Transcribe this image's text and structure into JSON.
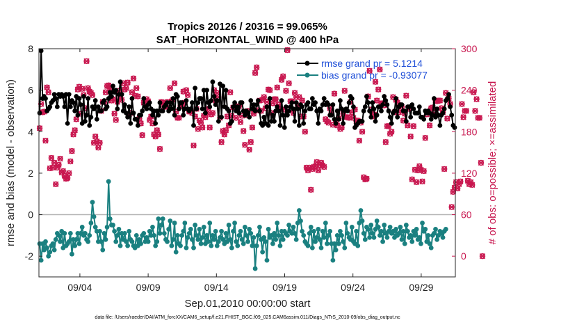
{
  "chart_data": {
    "type": "line",
    "title": "Tropics 20126 / 20316 = 99.065%",
    "subtitle": "SAT_HORIZONTAL_WIND @ 400 hPa",
    "xlabel": "Sep.01,2010 00:00:00 start",
    "ylabel": "rmse and bias (model - observation)",
    "y2label": "# of obs: o=possible; ×=assimilated",
    "footnote": "data file: /Users/raeder/DAI/ATM_forcXX/CAM6_setup/f.e21.FHIST_BGC.f09_025.CAM6assim.011/Diags_NTrS_2010-09/obs_diag_output.nc",
    "xlim": [
      1,
      31.5
    ],
    "ylim": [
      -3,
      8
    ],
    "y2lim": [
      -30,
      300
    ],
    "xticks": [
      4,
      9,
      14,
      19,
      24,
      29
    ],
    "xtick_labels": [
      "09/04",
      "09/09",
      "09/14",
      "09/19",
      "09/24",
      "09/29"
    ],
    "yticks": [
      -2,
      0,
      2,
      4,
      6,
      8
    ],
    "y2ticks": [
      0,
      60,
      120,
      180,
      240,
      300
    ],
    "legend": {
      "placement": "top-right",
      "entries": [
        "rmse grand pr = 5.1214",
        "bias grand pr = -0.93077"
      ]
    },
    "colors": {
      "rmse": "#000000",
      "bias": "#1a8080",
      "counts": "#c8174f",
      "zero_line": "#b4b4b4",
      "legend_text": "#1f4fd8"
    },
    "series": [
      {
        "name": "rmse",
        "axis": "left",
        "values": [
          4.9,
          7.9,
          5.6,
          5.7,
          5.6,
          5.0,
          5.1,
          5.2,
          5.4,
          5.5,
          5.8,
          5.6,
          5.2,
          5.8,
          5.7,
          5.8,
          5.7,
          5.2,
          5.8,
          4.4,
          5.8,
          5.2,
          5.5,
          5.4,
          5.0,
          5.7,
          4.8,
          5.6,
          5.3,
          4.4,
          5.7,
          4.5,
          4.8,
          5.6,
          4.3,
          4.7,
          5.2,
          5.1,
          5.5,
          4.6,
          5.2,
          5.0,
          5.0,
          5.4,
          5.5,
          5.1,
          5.2,
          5.6,
          5.9,
          5.7,
          6.2,
          5.9,
          6.0,
          5.1,
          5.8,
          6.4,
          5.8,
          5.0,
          5.3,
          4.9,
          4.7,
          5.2,
          4.4,
          5.6,
          4.9,
          4.6,
          4.6,
          4.3,
          4.8,
          4.8,
          5.0,
          5.6,
          5.2,
          5.1,
          5.3,
          5.4,
          5.1,
          4.8,
          5.0,
          4.4,
          5.0,
          4.8,
          5.4,
          5.0,
          5.0,
          5.2,
          5.3,
          5.4,
          5.0,
          5.4,
          5.1,
          5.6,
          4.8,
          5.8,
          5.7,
          5.1,
          5.4,
          5.4,
          4.8,
          5.1,
          5.5,
          5.1,
          5.0,
          5.1,
          5.4,
          4.3,
          6.1,
          5.1,
          5.4,
          5.6,
          5.6,
          5.1,
          6.0,
          4.9,
          6.0,
          5.4,
          5.2,
          5.5,
          6.4,
          5.7,
          5.3,
          5.5,
          4.5,
          6.3,
          4.7,
          6.2,
          5.2,
          6.0,
          5.1,
          5.0,
          4.4,
          4.5,
          5.2,
          5.4,
          5.0,
          5.2,
          4.9,
          5.4,
          5.4,
          5.0,
          4.8,
          5.0,
          4.9,
          4.7,
          5.5,
          5.1,
          5.3,
          5.0,
          5.3,
          5.5,
          5.0,
          4.4,
          4.3,
          4.7,
          4.4,
          5.2,
          4.3,
          5.6,
          4.5,
          4.8,
          4.5,
          5.0,
          5.2,
          5.0,
          4.3,
          5.5,
          4.8,
          4.2,
          5.2,
          4.8,
          5.0,
          5.2,
          5.4,
          5.1,
          4.5,
          5.4,
          5.1,
          4.3,
          5.3,
          5.2,
          4.4,
          5.0,
          5.3,
          5.4,
          5.1,
          5.1,
          5.6,
          5.3,
          5.4,
          5.0,
          4.4,
          5.1,
          5.0,
          5.3,
          5.6,
          5.3,
          5.4,
          5.3,
          4.8,
          4.8,
          5.3,
          4.6,
          4.4,
          5.0,
          4.6,
          5.5,
          5.1,
          4.4,
          5.0,
          5.1,
          5.0,
          5.4,
          5.7,
          5.6,
          5.2,
          4.2,
          4.3,
          4.4,
          4.5,
          4.5,
          4.5,
          5.0,
          5.2,
          5.7,
          5.4,
          5.0,
          4.7,
          5.4,
          5.1,
          4.5,
          4.8,
          5.2,
          5.2,
          5.0,
          5.3,
          5.7,
          5.5,
          5.3,
          5.0,
          4.7,
          4.4,
          4.9,
          5.0,
          5.6,
          4.7,
          5.2,
          5.3,
          5.3,
          5.0,
          5.0,
          4.5,
          5.2,
          5.2,
          4.7,
          5.3,
          5.1,
          4.9,
          4.9,
          4.9,
          5.2,
          4.7,
          4.7,
          4.6,
          5.0,
          4.9,
          5.0,
          4.9,
          4.6,
          4.8,
          5.6,
          4.7,
          5.1,
          4.8,
          4.3,
          4.8,
          4.9,
          5.1,
          5.5,
          5.6,
          5.8,
          5.2,
          4.8,
          4.3,
          4.2
        ]
      },
      {
        "name": "bias",
        "axis": "left",
        "values": [
          -1.4,
          -2.2,
          -1.4,
          -1.7,
          -1.3,
          -1.6,
          -2.0,
          -1.8,
          -1.5,
          -1.4,
          -1.7,
          -1.2,
          -0.9,
          -1.0,
          -1.3,
          -0.8,
          -1.6,
          -0.9,
          -1.5,
          -1.4,
          -1.3,
          -0.9,
          -1.9,
          -1.2,
          -1.5,
          -1.2,
          -0.9,
          -1.4,
          -0.9,
          -0.6,
          -1.0,
          -0.9,
          -1.2,
          -1.3,
          -1.0,
          -0.4,
          0.6,
          -0.1,
          -0.6,
          -0.8,
          -1.3,
          -0.8,
          -1.3,
          -1.7,
          -0.9,
          -1.2,
          -0.6,
          1.6,
          -0.2,
          -0.5,
          -0.5,
          -0.8,
          -1.3,
          -1.0,
          -0.7,
          -1.5,
          -0.9,
          -1.2,
          -0.9,
          -1.3,
          -1.5,
          -0.8,
          -1.2,
          -1.3,
          -1.5,
          -1.6,
          -1.0,
          -1.5,
          -1.2,
          -1.4,
          -1.0,
          -0.9,
          -1.3,
          -1.1,
          -1.3,
          -0.8,
          -1.0,
          -0.6,
          -1.0,
          -1.5,
          -1.3,
          -0.2,
          -0.9,
          -0.5,
          -0.2,
          -0.9,
          -1.2,
          -1.3,
          -0.7,
          -0.3,
          -1.5,
          -1.2,
          -0.4,
          -1.8,
          -1.0,
          -1.4,
          -1.5,
          -1.0,
          -0.8,
          -0.4,
          -1.6,
          -1.1,
          -0.9,
          -0.7,
          -1.2,
          -1.6,
          -0.5,
          -1.0,
          -1.2,
          -0.7,
          -1.4,
          -1.1,
          -0.6,
          -1.4,
          -1.0,
          -1.3,
          -0.4,
          -1.5,
          -1.0,
          -1.2,
          -0.8,
          -1.5,
          -1.3,
          -1.1,
          -0.8,
          -1.2,
          -1.4,
          -0.9,
          -1.3,
          -0.5,
          -1.2,
          -1.6,
          -0.8,
          -0.4,
          -1.3,
          -1.5,
          -1.0,
          -0.8,
          -1.2,
          -1.4,
          -0.6,
          -1.0,
          -1.3,
          -0.7,
          -0.9,
          -1.5,
          -1.1,
          -2.6,
          -1.5,
          -1.0,
          -0.6,
          -1.2,
          -1.8,
          -1.1,
          -1.3,
          -2.2,
          -0.7,
          -1.1,
          -1.0,
          -1.4,
          -0.9,
          -1.2,
          -0.4,
          -1.0,
          -1.5,
          -0.8,
          -1.2,
          -0.8,
          -0.9,
          -1.0,
          -0.5,
          -0.8,
          -0.9,
          -0.6,
          -0.9,
          -1.2,
          -0.4,
          0.2,
          -0.3,
          -0.8,
          -1.0,
          -1.3,
          -1.4,
          -1.5,
          -0.9,
          -0.6,
          -1.6,
          -0.8,
          -1.3,
          -1.1,
          -0.7,
          -1.2,
          -1.6,
          -0.8,
          -1.1,
          -0.4,
          -1.4,
          -1.0,
          -0.8,
          -1.4,
          -2.2,
          -1.4,
          -1.7,
          -1.0,
          -1.4,
          -0.8,
          -1.0,
          -1.3,
          -1.6,
          -0.4,
          -0.9,
          -1.1,
          -1.2,
          -0.6,
          -1.3,
          -1.4,
          -0.8,
          -1.5,
          -0.4,
          0.2,
          -0.3,
          -0.9,
          -1.2,
          -0.6,
          -0.7,
          -1.1,
          -0.5,
          -0.9,
          -1.1,
          -0.7,
          -0.3,
          -0.6,
          -1.0,
          -0.8,
          -1.3,
          -0.5,
          -0.9,
          -1.1,
          -0.8,
          -0.6,
          -0.9,
          -0.8,
          -1.1,
          -0.7,
          -1.0,
          -0.9,
          -0.6,
          -1.2,
          -0.8,
          -1.4,
          -0.5,
          -0.8,
          -1.1,
          -1.0,
          -1.3,
          -0.8,
          -1.0,
          -0.7,
          -1.2,
          -1.1,
          -1.4,
          -0.4,
          -0.8,
          -0.7,
          -1.3,
          -1.0,
          -1.4,
          -1.6,
          -1.0,
          -0.9,
          -0.7,
          -1.2,
          -1.0,
          -0.8,
          -0.9,
          -1.1,
          -0.8,
          -0.7
        ]
      },
      {
        "name": "possible",
        "axis": "right",
        "marker": "o",
        "values": [
          185,
          220,
          208,
          209,
          167,
          244,
          237,
          127,
          142,
          128,
          135,
          104,
          128,
          132,
          141,
          121,
          123,
          116,
          112,
          113,
          120,
          137,
          152,
          176,
          182,
          198,
          241,
          245,
          206,
          242,
          233,
          214,
          282,
          243,
          238,
          236,
          233,
          164,
          173,
          166,
          157,
          164,
          210,
          223,
          223,
          237,
          246,
          247,
          242,
          225,
          227,
          206,
          197,
          223,
          239,
          231,
          226,
          250,
          241,
          243,
          251,
          205,
          207,
          237,
          257,
          232,
          243,
          231,
          199,
          192,
          175,
          222,
          224,
          227,
          224,
          197,
          202,
          192,
          176,
          173,
          182,
          176,
          155,
          223,
          222,
          217,
          216,
          223,
          221,
          243,
          224,
          226,
          250,
          209,
          200,
          200,
          217,
          217,
          238,
          222,
          240,
          233,
          209,
          211,
          207,
          160,
          202,
          213,
          184,
          196,
          193,
          186,
          203,
          201,
          207,
          213,
          186,
          205,
          207,
          240,
          225,
          236,
          230,
          200,
          165,
          181,
          176,
          182,
          202,
          189,
          237,
          203,
          215,
          215,
          200,
          216,
          217,
          194,
          203,
          181,
          161,
          204,
          210,
          154,
          165,
          186,
          206,
          265,
          273,
          211,
          225,
          210,
          226,
          230,
          214,
          223,
          241,
          240,
          207,
          221,
          227,
          227,
          244,
          219,
          214,
          255,
          260,
          212,
          239,
          298,
          250,
          224,
          224,
          207,
          236,
          230,
          218,
          230,
          202,
          225,
          202,
          180,
          128,
          124,
          128,
          96,
          126,
          129,
          130,
          136,
          124,
          132,
          135,
          131,
          129,
          198,
          195,
          193,
          214,
          208,
          190,
          235,
          194,
          189,
          199,
          184,
          186,
          206,
          239,
          201,
          201,
          200,
          223,
          208,
          200,
          212,
          195,
          196,
          167,
          193,
          180,
          114,
          111,
          112,
          231,
          268,
          212,
          202,
          205,
          252,
          225,
          241,
          270,
          221,
          221,
          218,
          165,
          188,
          188,
          177,
          180,
          230,
          208,
          226,
          222,
          208,
          218,
          216,
          196,
          206,
          232,
          189,
          213,
          173,
          111,
          188,
          125,
          107,
          124,
          130,
          125,
          108,
          123,
          171,
          205,
          209,
          189,
          214,
          215,
          207,
          225,
          224,
          225,
          225,
          214,
          208,
          126,
          236,
          199,
          228,
          220,
          71,
          93,
          99,
          107,
          98,
          104,
          108,
          220,
          201,
          210,
          210,
          109,
          104,
          107,
          103,
          237,
          210,
          227,
          200,
          200,
          135,
          0
        ]
      },
      {
        "name": "assimilated",
        "axis": "right",
        "marker": "x",
        "values": [
          185,
          220,
          208,
          209,
          167,
          244,
          237,
          127,
          142,
          128,
          135,
          104,
          128,
          132,
          141,
          121,
          123,
          116,
          112,
          113,
          120,
          137,
          152,
          176,
          182,
          198,
          241,
          245,
          206,
          242,
          233,
          214,
          282,
          243,
          238,
          236,
          233,
          164,
          173,
          166,
          157,
          164,
          210,
          223,
          223,
          237,
          246,
          247,
          242,
          225,
          227,
          206,
          197,
          223,
          239,
          231,
          226,
          250,
          241,
          243,
          251,
          205,
          207,
          237,
          257,
          232,
          243,
          231,
          199,
          192,
          175,
          222,
          224,
          227,
          224,
          197,
          202,
          192,
          176,
          173,
          182,
          176,
          155,
          223,
          222,
          217,
          216,
          223,
          221,
          243,
          224,
          226,
          250,
          209,
          200,
          200,
          217,
          217,
          238,
          222,
          240,
          233,
          209,
          211,
          207,
          160,
          202,
          213,
          184,
          196,
          193,
          186,
          203,
          201,
          207,
          213,
          186,
          205,
          207,
          240,
          225,
          236,
          230,
          200,
          165,
          181,
          176,
          182,
          202,
          189,
          237,
          203,
          215,
          215,
          200,
          216,
          217,
          194,
          203,
          181,
          161,
          204,
          210,
          154,
          165,
          186,
          206,
          265,
          273,
          211,
          225,
          210,
          226,
          230,
          214,
          223,
          241,
          240,
          207,
          221,
          227,
          227,
          244,
          219,
          214,
          255,
          260,
          212,
          239,
          298,
          250,
          224,
          224,
          207,
          236,
          230,
          218,
          230,
          202,
          225,
          202,
          180,
          128,
          124,
          128,
          96,
          126,
          129,
          130,
          136,
          124,
          132,
          135,
          131,
          129,
          198,
          195,
          193,
          214,
          208,
          190,
          235,
          194,
          189,
          199,
          184,
          186,
          206,
          239,
          201,
          201,
          200,
          223,
          208,
          200,
          212,
          195,
          196,
          167,
          193,
          180,
          114,
          111,
          112,
          231,
          268,
          212,
          202,
          205,
          252,
          225,
          241,
          270,
          221,
          221,
          218,
          165,
          188,
          188,
          177,
          180,
          230,
          208,
          226,
          222,
          208,
          218,
          216,
          196,
          206,
          232,
          189,
          213,
          173,
          111,
          188,
          125,
          107,
          124,
          130,
          125,
          108,
          123,
          171,
          205,
          209,
          189,
          214,
          215,
          207,
          225,
          224,
          225,
          225,
          214,
          208,
          126,
          236,
          199,
          228,
          220,
          71,
          93,
          99,
          107,
          98,
          104,
          108,
          220,
          201,
          210,
          210,
          109,
          104,
          107,
          103,
          237,
          210,
          227,
          200,
          200,
          135,
          0
        ]
      }
    ]
  }
}
